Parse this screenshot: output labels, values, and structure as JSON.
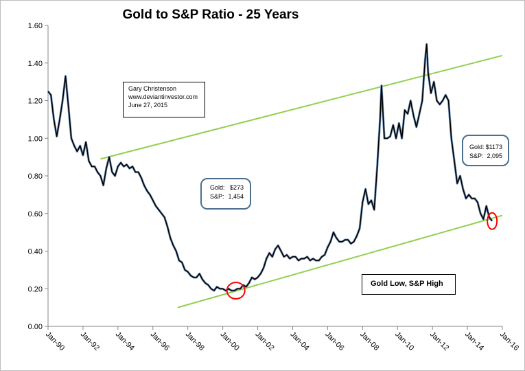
{
  "chart_data": {
    "type": "line",
    "title": "Gold to S&P Ratio - 25 Years",
    "xlabel": "",
    "ylabel": "",
    "ylim": [
      0,
      1.6
    ],
    "xlim": [
      "1990-01",
      "2016-01"
    ],
    "y_ticks": [
      "0.00",
      "0.20",
      "0.40",
      "0.60",
      "0.80",
      "1.00",
      "1.20",
      "1.40",
      "1.60"
    ],
    "x_ticks": [
      "Jan-90",
      "Jan-92",
      "Jan-94",
      "Jan-96",
      "Jan-98",
      "Jan-00",
      "Jan-02",
      "Jan-04",
      "Jan-06",
      "Jan-08",
      "Jan-10",
      "Jan-12",
      "Jan-14",
      "Jan-16"
    ],
    "grid": false,
    "legend": "none",
    "series": [
      {
        "color": "#000000",
        "points": [
          [
            "1990-01",
            1.25
          ],
          [
            "1990-03",
            1.23
          ],
          [
            "1990-05",
            1.1
          ],
          [
            "1990-07",
            1.01
          ],
          [
            "1990-09",
            1.1
          ],
          [
            "1990-11",
            1.2
          ],
          [
            "1991-01",
            1.33
          ],
          [
            "1991-03",
            1.17
          ],
          [
            "1991-05",
            1.0
          ],
          [
            "1991-07",
            0.96
          ],
          [
            "1991-09",
            0.93
          ],
          [
            "1991-11",
            0.96
          ],
          [
            "1992-01",
            0.91
          ],
          [
            "1992-03",
            0.98
          ],
          [
            "1992-05",
            0.88
          ],
          [
            "1992-07",
            0.85
          ],
          [
            "1992-09",
            0.85
          ],
          [
            "1992-11",
            0.82
          ],
          [
            "1993-01",
            0.8
          ],
          [
            "1993-03",
            0.75
          ],
          [
            "1993-05",
            0.84
          ],
          [
            "1993-07",
            0.9
          ],
          [
            "1993-09",
            0.82
          ],
          [
            "1993-11",
            0.8
          ],
          [
            "1994-01",
            0.85
          ],
          [
            "1994-03",
            0.87
          ],
          [
            "1994-05",
            0.85
          ],
          [
            "1994-07",
            0.86
          ],
          [
            "1994-09",
            0.84
          ],
          [
            "1994-11",
            0.85
          ],
          [
            "1995-01",
            0.82
          ],
          [
            "1995-03",
            0.82
          ],
          [
            "1995-05",
            0.79
          ],
          [
            "1995-07",
            0.75
          ],
          [
            "1995-09",
            0.72
          ],
          [
            "1995-11",
            0.7
          ],
          [
            "1996-01",
            0.67
          ],
          [
            "1996-03",
            0.64
          ],
          [
            "1996-05",
            0.62
          ],
          [
            "1996-07",
            0.6
          ],
          [
            "1996-09",
            0.58
          ],
          [
            "1996-11",
            0.53
          ],
          [
            "1997-01",
            0.47
          ],
          [
            "1997-03",
            0.43
          ],
          [
            "1997-05",
            0.4
          ],
          [
            "1997-07",
            0.35
          ],
          [
            "1997-09",
            0.34
          ],
          [
            "1997-11",
            0.3
          ],
          [
            "1998-01",
            0.29
          ],
          [
            "1998-03",
            0.27
          ],
          [
            "1998-05",
            0.26
          ],
          [
            "1998-07",
            0.26
          ],
          [
            "1998-09",
            0.28
          ],
          [
            "1998-11",
            0.25
          ],
          [
            "1999-01",
            0.23
          ],
          [
            "1999-03",
            0.22
          ],
          [
            "1999-05",
            0.2
          ],
          [
            "1999-07",
            0.19
          ],
          [
            "1999-09",
            0.21
          ],
          [
            "1999-11",
            0.2
          ],
          [
            "2000-01",
            0.2
          ],
          [
            "2000-03",
            0.19
          ],
          [
            "2000-05",
            0.2
          ],
          [
            "2000-07",
            0.19
          ],
          [
            "2000-09",
            0.19
          ],
          [
            "2000-11",
            0.2
          ],
          [
            "2001-01",
            0.2
          ],
          [
            "2001-03",
            0.22
          ],
          [
            "2001-05",
            0.21
          ],
          [
            "2001-07",
            0.23
          ],
          [
            "2001-09",
            0.26
          ],
          [
            "2001-11",
            0.25
          ],
          [
            "2002-01",
            0.26
          ],
          [
            "2002-03",
            0.28
          ],
          [
            "2002-05",
            0.31
          ],
          [
            "2002-07",
            0.36
          ],
          [
            "2002-09",
            0.39
          ],
          [
            "2002-11",
            0.37
          ],
          [
            "2003-01",
            0.41
          ],
          [
            "2003-03",
            0.43
          ],
          [
            "2003-05",
            0.4
          ],
          [
            "2003-07",
            0.37
          ],
          [
            "2003-09",
            0.38
          ],
          [
            "2003-11",
            0.36
          ],
          [
            "2004-01",
            0.37
          ],
          [
            "2004-03",
            0.37
          ],
          [
            "2004-05",
            0.35
          ],
          [
            "2004-07",
            0.36
          ],
          [
            "2004-09",
            0.36
          ],
          [
            "2004-11",
            0.37
          ],
          [
            "2005-01",
            0.35
          ],
          [
            "2005-03",
            0.36
          ],
          [
            "2005-05",
            0.35
          ],
          [
            "2005-07",
            0.35
          ],
          [
            "2005-09",
            0.37
          ],
          [
            "2005-11",
            0.38
          ],
          [
            "2006-01",
            0.42
          ],
          [
            "2006-03",
            0.45
          ],
          [
            "2006-05",
            0.5
          ],
          [
            "2006-07",
            0.47
          ],
          [
            "2006-09",
            0.45
          ],
          [
            "2006-11",
            0.45
          ],
          [
            "2007-01",
            0.46
          ],
          [
            "2007-03",
            0.46
          ],
          [
            "2007-05",
            0.44
          ],
          [
            "2007-07",
            0.45
          ],
          [
            "2007-09",
            0.48
          ],
          [
            "2007-11",
            0.52
          ],
          [
            "2008-01",
            0.66
          ],
          [
            "2008-03",
            0.73
          ],
          [
            "2008-05",
            0.65
          ],
          [
            "2008-07",
            0.67
          ],
          [
            "2008-09",
            0.62
          ],
          [
            "2008-11",
            0.84
          ],
          [
            "2009-01",
            1.1
          ],
          [
            "2009-02",
            1.28
          ],
          [
            "2009-04",
            1.0
          ],
          [
            "2009-06",
            1.0
          ],
          [
            "2009-08",
            1.01
          ],
          [
            "2009-10",
            1.07
          ],
          [
            "2009-12",
            1.0
          ],
          [
            "2010-02",
            1.08
          ],
          [
            "2010-04",
            1.0
          ],
          [
            "2010-06",
            1.15
          ],
          [
            "2010-08",
            1.13
          ],
          [
            "2010-10",
            1.2
          ],
          [
            "2010-12",
            1.12
          ],
          [
            "2011-02",
            1.06
          ],
          [
            "2011-04",
            1.13
          ],
          [
            "2011-06",
            1.2
          ],
          [
            "2011-08",
            1.42
          ],
          [
            "2011-09",
            1.5
          ],
          [
            "2011-10",
            1.35
          ],
          [
            "2011-12",
            1.24
          ],
          [
            "2012-02",
            1.3
          ],
          [
            "2012-04",
            1.2
          ],
          [
            "2012-06",
            1.18
          ],
          [
            "2012-08",
            1.2
          ],
          [
            "2012-10",
            1.23
          ],
          [
            "2012-12",
            1.2
          ],
          [
            "2013-02",
            1.0
          ],
          [
            "2013-04",
            0.88
          ],
          [
            "2013-06",
            0.76
          ],
          [
            "2013-08",
            0.8
          ],
          [
            "2013-10",
            0.73
          ],
          [
            "2013-12",
            0.68
          ],
          [
            "2014-02",
            0.7
          ],
          [
            "2014-04",
            0.68
          ],
          [
            "2014-06",
            0.68
          ],
          [
            "2014-08",
            0.66
          ],
          [
            "2014-10",
            0.6
          ],
          [
            "2014-12",
            0.57
          ],
          [
            "2015-02",
            0.64
          ],
          [
            "2015-04",
            0.58
          ],
          [
            "2015-06",
            0.56
          ]
        ]
      }
    ],
    "trendlines": [
      {
        "color": "#92d050",
        "from": [
          "1993-01",
          0.89
        ],
        "to": [
          "2016-01",
          1.44
        ]
      },
      {
        "color": "#92d050",
        "from": [
          "1997-06",
          0.1
        ],
        "to": [
          "2016-01",
          0.59
        ]
      }
    ],
    "highlight_circles": [
      {
        "color": "#ff0000",
        "center": [
          "2000-10",
          0.19
        ]
      },
      {
        "color": "#ff0000",
        "center": [
          "2015-06",
          0.56
        ]
      }
    ],
    "annotations": {
      "author": [
        "Gary Christenson",
        "www.deviantinvestor.com",
        "June 27, 2015"
      ],
      "low_callout": {
        "gold_label": "Gold:",
        "gold_value": "$273",
        "sp_label": "S&P:",
        "sp_value": "1,454"
      },
      "high_callout": {
        "gold_label": "Gold:",
        "gold_value": "$1173",
        "sp_label": "S&P:",
        "sp_value": "2,095"
      },
      "note": "Gold Low, S&P High"
    }
  }
}
